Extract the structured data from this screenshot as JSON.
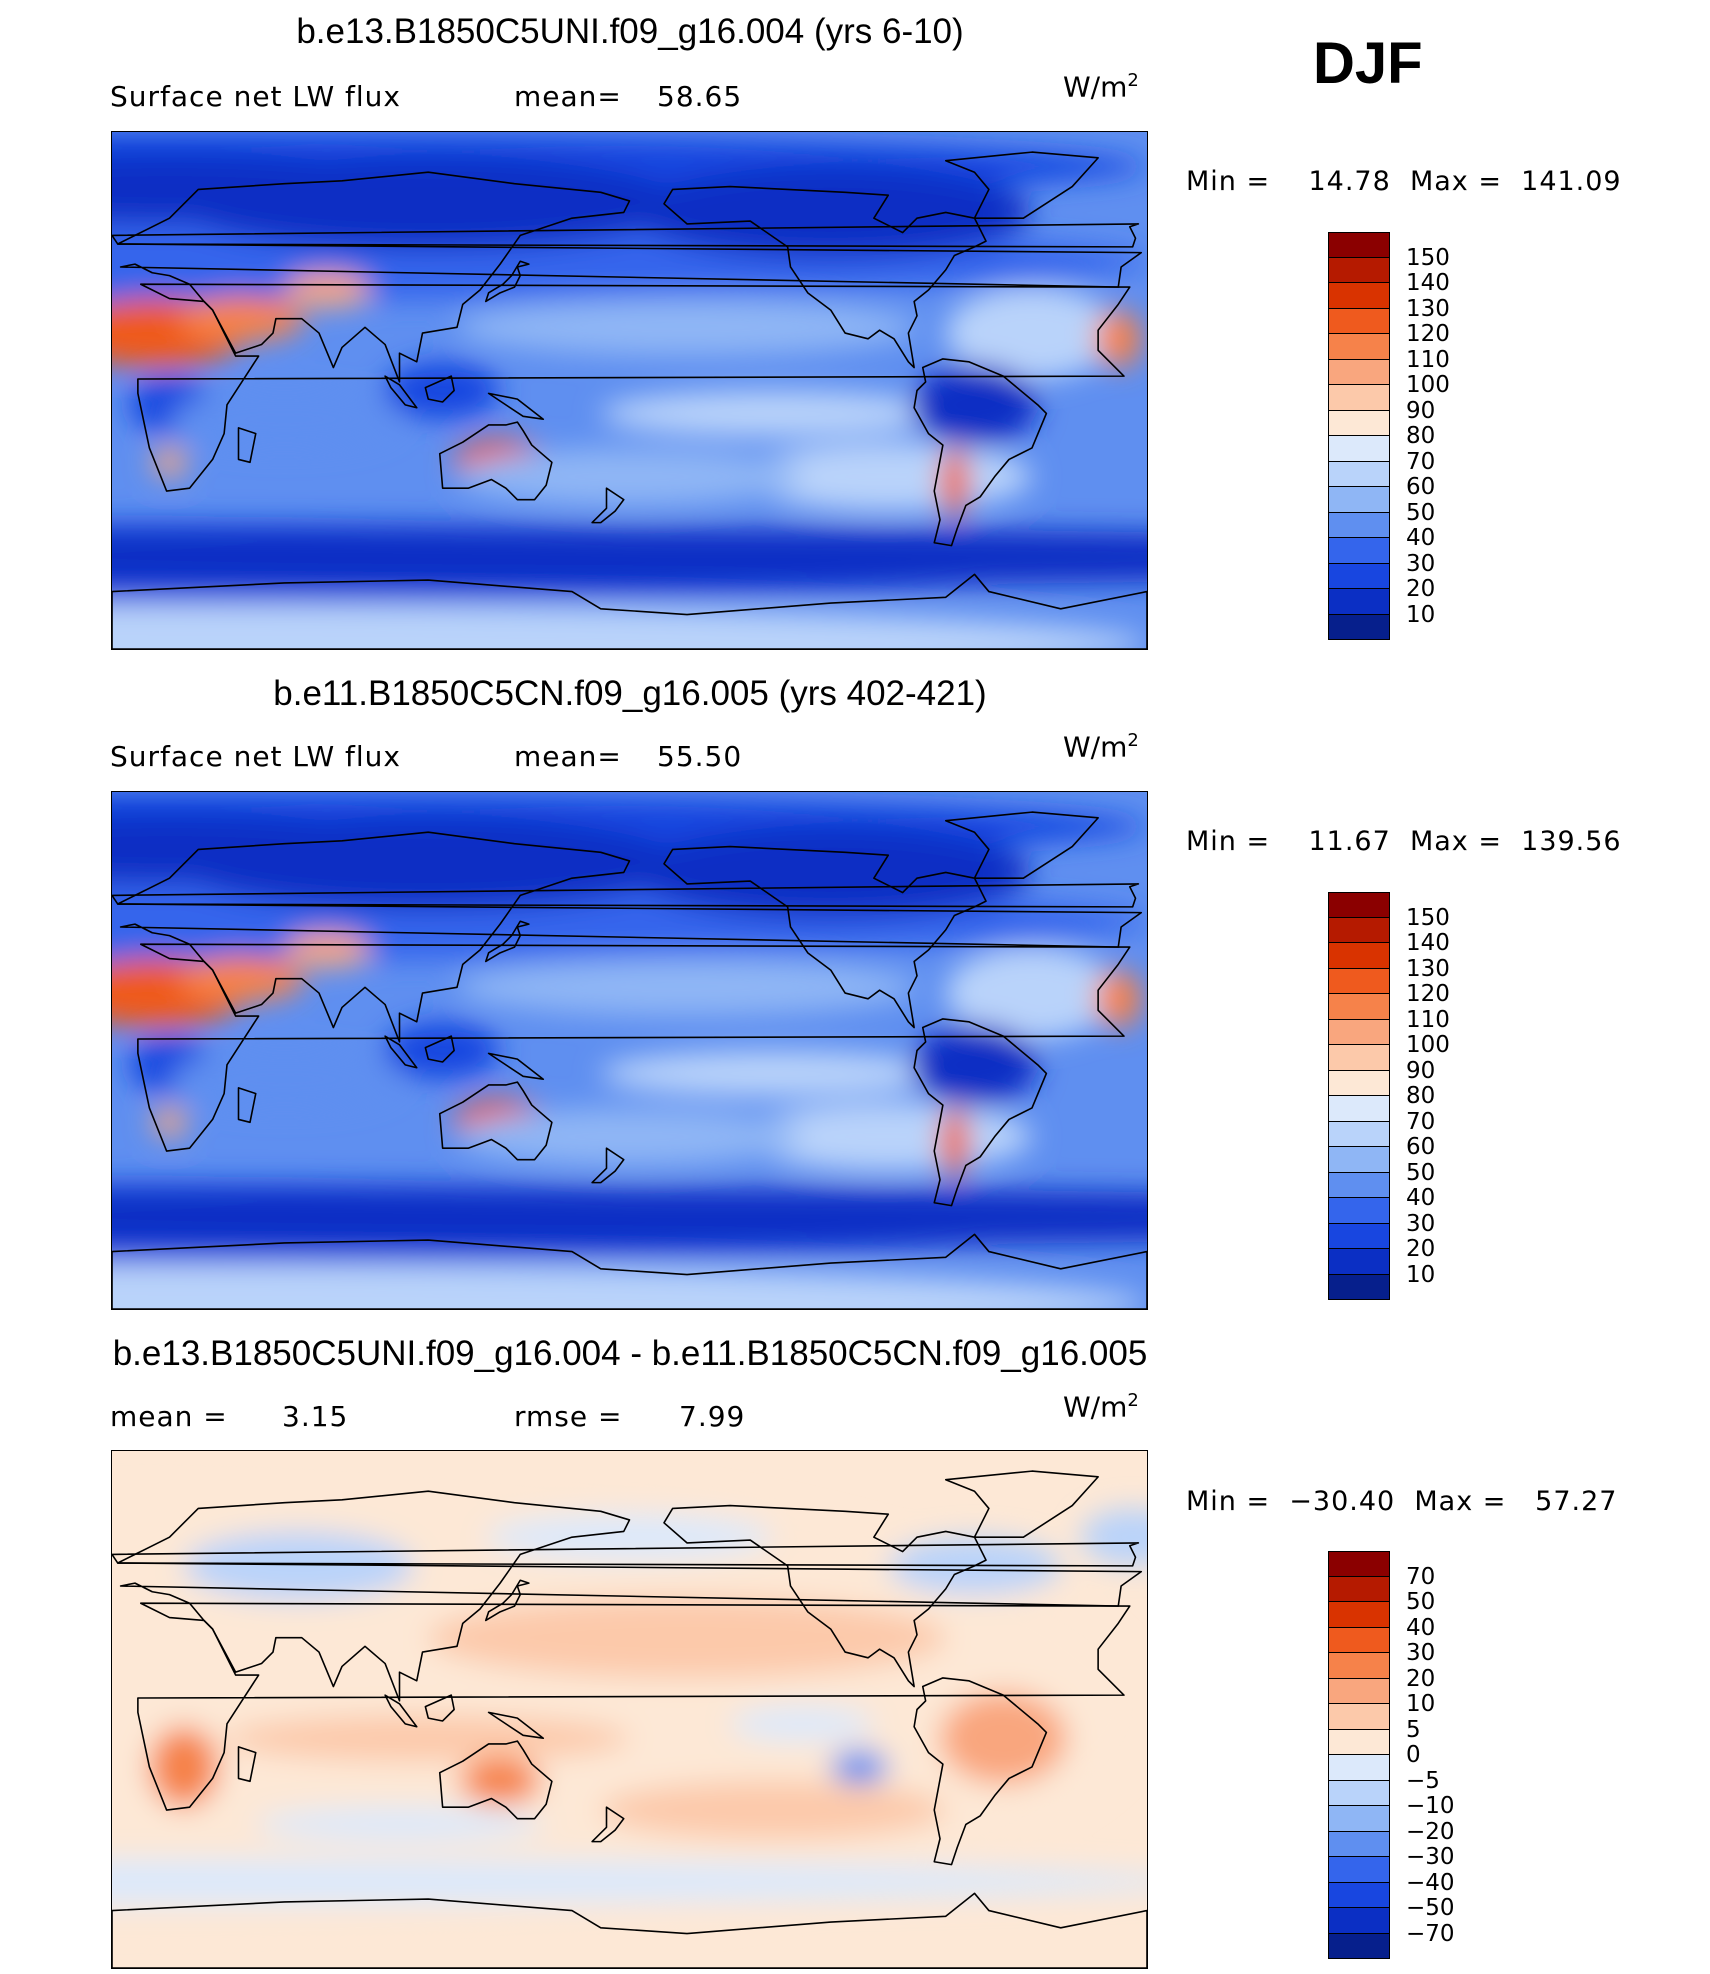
{
  "season": "DJF",
  "panels": [
    {
      "title": "b.e13.B1850C5UNI.f09_g16.004 (yrs 6-10)",
      "left_label": "Surface net LW flux",
      "stat1_label": "mean=",
      "stat1_value": "58.65",
      "units": "W/m",
      "units_sup": "2",
      "minmax": {
        "min_label": "Min =",
        "min": "14.78",
        "max_label": "Max =",
        "max": "141.09"
      },
      "colorbar": {
        "ticks": [
          "150",
          "140",
          "130",
          "120",
          "110",
          "100",
          "90",
          "80",
          "70",
          "60",
          "50",
          "40",
          "30",
          "20",
          "10"
        ],
        "colors": [
          "#8b0000",
          "#b51a00",
          "#d93300",
          "#ef5a1e",
          "#f6824a",
          "#f9a67e",
          "#fcc9aa",
          "#fde8d6",
          "#dce9fb",
          "#b9d3fa",
          "#8fb6f5",
          "#5f8ff0",
          "#3465ec",
          "#1846e0",
          "#0b2fc4",
          "#061f8c"
        ]
      },
      "map_style": "field"
    },
    {
      "title": "b.e11.B1850C5CN.f09_g16.005 (yrs 402-421)",
      "left_label": "Surface net LW flux",
      "stat1_label": "mean=",
      "stat1_value": "55.50",
      "units": "W/m",
      "units_sup": "2",
      "minmax": {
        "min_label": "Min =",
        "min": "11.67",
        "max_label": "Max =",
        "max": "139.56"
      },
      "colorbar": {
        "ticks": [
          "150",
          "140",
          "130",
          "120",
          "110",
          "100",
          "90",
          "80",
          "70",
          "60",
          "50",
          "40",
          "30",
          "20",
          "10"
        ],
        "colors": [
          "#8b0000",
          "#b51a00",
          "#d93300",
          "#ef5a1e",
          "#f6824a",
          "#f9a67e",
          "#fcc9aa",
          "#fde8d6",
          "#dce9fb",
          "#b9d3fa",
          "#8fb6f5",
          "#5f8ff0",
          "#3465ec",
          "#1846e0",
          "#0b2fc4",
          "#061f8c"
        ]
      },
      "map_style": "field"
    },
    {
      "title": "b.e13.B1850C5UNI.f09_g16.004 - b.e11.B1850C5CN.f09_g16.005",
      "left_label": "mean =",
      "left_value": "3.15",
      "stat1_label": "rmse =",
      "stat1_value": "7.99",
      "units": "W/m",
      "units_sup": "2",
      "minmax": {
        "min_label": "Min =",
        "min": "−30.40",
        "max_label": "Max =",
        "max": "57.27"
      },
      "colorbar": {
        "ticks": [
          "70",
          "50",
          "40",
          "30",
          "20",
          "10",
          "5",
          "0",
          "−5",
          "−10",
          "−20",
          "−30",
          "−40",
          "−50",
          "−70"
        ],
        "colors": [
          "#8b0000",
          "#b51a00",
          "#d93300",
          "#ef5a1e",
          "#f6824a",
          "#f9a67e",
          "#fcc9aa",
          "#fde8d6",
          "#dce9fb",
          "#b9d3fa",
          "#8fb6f5",
          "#5f8ff0",
          "#3465ec",
          "#1846e0",
          "#0b2fc4",
          "#061f8c"
        ]
      },
      "map_style": "diff"
    }
  ]
}
